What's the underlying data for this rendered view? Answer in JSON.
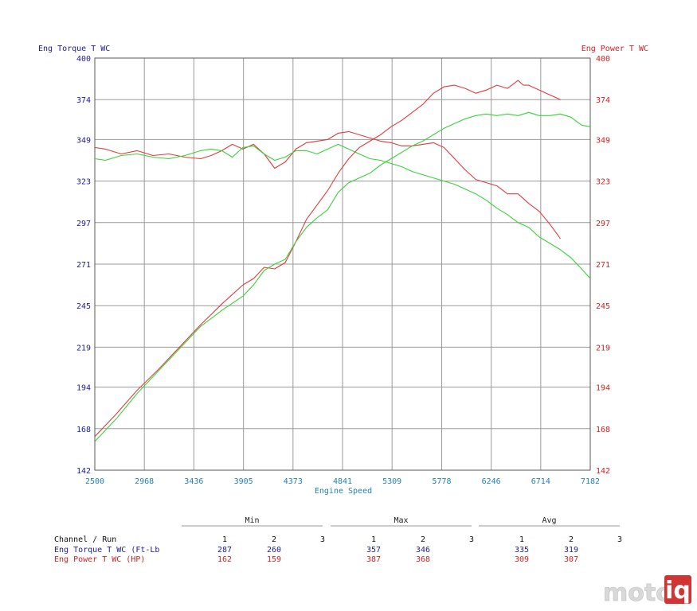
{
  "colors": {
    "torque": "#1a1aa8",
    "power": "#d61e1e",
    "xaxis": "#1f7fc0",
    "run1_line": "#e03b3b",
    "run2_line": "#3ad13a",
    "grid": "#9a9a9a"
  },
  "chart_data": {
    "type": "line",
    "title": "",
    "xlabel": "Engine Speed",
    "ylabel_left": "Eng Torque T WC",
    "ylabel_right": "Eng Power T WC",
    "xlim": [
      2500,
      7182
    ],
    "ylim_left": [
      142,
      400
    ],
    "ylim_right": [
      142,
      400
    ],
    "x_ticks": [
      2500,
      2968,
      3436,
      3905,
      4373,
      4841,
      5309,
      5778,
      6246,
      6714,
      7182
    ],
    "y_ticks": [
      142,
      168,
      194,
      219,
      245,
      271,
      297,
      323,
      349,
      374,
      400
    ],
    "grid": true,
    "series": [
      {
        "color": "#e03b3b",
        "axis": "left",
        "x": [
          2500,
          2600,
          2750,
          2900,
          3050,
          3200,
          3350,
          3500,
          3600,
          3700,
          3800,
          3900,
          4000,
          4100,
          4200,
          4300,
          4400,
          4500,
          4600,
          4700,
          4800,
          4900,
          5000,
          5100,
          5200,
          5300,
          5400,
          5500,
          5600,
          5700,
          5800,
          5900,
          6000,
          6100,
          6200,
          6300,
          6400,
          6500,
          6600,
          6700,
          6800,
          6900
        ],
        "y": [
          344,
          343,
          340,
          342,
          339,
          340,
          338,
          337,
          339,
          342,
          346,
          343,
          346,
          340,
          331,
          335,
          343,
          347,
          348,
          349,
          353,
          354,
          352,
          350,
          348,
          347,
          345,
          345,
          346,
          347,
          344,
          337,
          330,
          324,
          322,
          320,
          315,
          315,
          309,
          304,
          296,
          287
        ]
      },
      {
        "color": "#3ad13a",
        "axis": "left",
        "x": [
          2500,
          2600,
          2750,
          2900,
          3050,
          3200,
          3350,
          3500,
          3600,
          3700,
          3800,
          3900,
          4000,
          4100,
          4200,
          4300,
          4400,
          4500,
          4600,
          4700,
          4800,
          4900,
          5000,
          5100,
          5200,
          5300,
          5400,
          5500,
          5600,
          5700,
          5800,
          5900,
          6000,
          6100,
          6200,
          6300,
          6400,
          6500,
          6600,
          6700,
          6800,
          6900,
          7000,
          7100,
          7182
        ],
        "y": [
          337,
          336,
          339,
          340,
          338,
          337,
          339,
          342,
          343,
          342,
          338,
          344,
          345,
          340,
          336,
          338,
          342,
          342,
          340,
          343,
          346,
          343,
          340,
          337,
          336,
          334,
          332,
          329,
          327,
          325,
          323,
          321,
          318,
          315,
          311,
          306,
          302,
          297,
          294,
          288,
          284,
          280,
          275,
          268,
          262
        ]
      },
      {
        "color": "#e03b3b",
        "axis": "right",
        "x": [
          2500,
          2700,
          2900,
          3100,
          3300,
          3500,
          3700,
          3900,
          4000,
          4100,
          4200,
          4300,
          4400,
          4500,
          4600,
          4700,
          4800,
          4900,
          5000,
          5100,
          5200,
          5300,
          5400,
          5500,
          5600,
          5700,
          5800,
          5900,
          6000,
          6100,
          6200,
          6300,
          6400,
          6500,
          6550,
          6600,
          6700,
          6800,
          6900
        ],
        "y": [
          163,
          177,
          192,
          205,
          219,
          233,
          246,
          258,
          262,
          269,
          268,
          272,
          285,
          299,
          308,
          317,
          328,
          337,
          344,
          348,
          352,
          357,
          361,
          366,
          371,
          378,
          382,
          383,
          381,
          378,
          380,
          383,
          381,
          386,
          383,
          383,
          380,
          377,
          374
        ]
      },
      {
        "color": "#3ad13a",
        "axis": "right",
        "x": [
          2500,
          2700,
          2900,
          3100,
          3300,
          3500,
          3700,
          3900,
          4000,
          4100,
          4200,
          4300,
          4400,
          4500,
          4600,
          4700,
          4800,
          4900,
          5000,
          5100,
          5200,
          5300,
          5400,
          5500,
          5600,
          5700,
          5800,
          5900,
          6000,
          6100,
          6200,
          6300,
          6400,
          6500,
          6600,
          6700,
          6800,
          6900,
          7000,
          7100,
          7182
        ],
        "y": [
          160,
          174,
          190,
          204,
          218,
          232,
          242,
          251,
          258,
          267,
          271,
          274,
          285,
          294,
          300,
          305,
          316,
          322,
          325,
          328,
          333,
          337,
          341,
          345,
          348,
          352,
          356,
          359,
          362,
          364,
          365,
          364,
          365,
          364,
          366,
          364,
          364,
          365,
          363,
          358,
          357
        ]
      }
    ],
    "table": {
      "header_title": "Channel / Run",
      "groups": [
        "Min",
        "Max",
        "Avg"
      ],
      "run_labels": [
        "1",
        "2",
        "3"
      ],
      "rows": [
        {
          "label": "Eng Torque T WC (Ft-Lb",
          "color": "#1a1aa8",
          "min": [
            "287",
            "260",
            ""
          ],
          "max": [
            "357",
            "346",
            ""
          ],
          "avg": [
            "335",
            "319",
            ""
          ]
        },
        {
          "label": "Eng Power T WC (HP)",
          "color": "#d61e1e",
          "min": [
            "162",
            "159",
            ""
          ],
          "max": [
            "387",
            "368",
            ""
          ],
          "avg": [
            "309",
            "307",
            ""
          ]
        }
      ]
    }
  },
  "watermark": {
    "part1": "moto",
    "part2": "iq"
  }
}
